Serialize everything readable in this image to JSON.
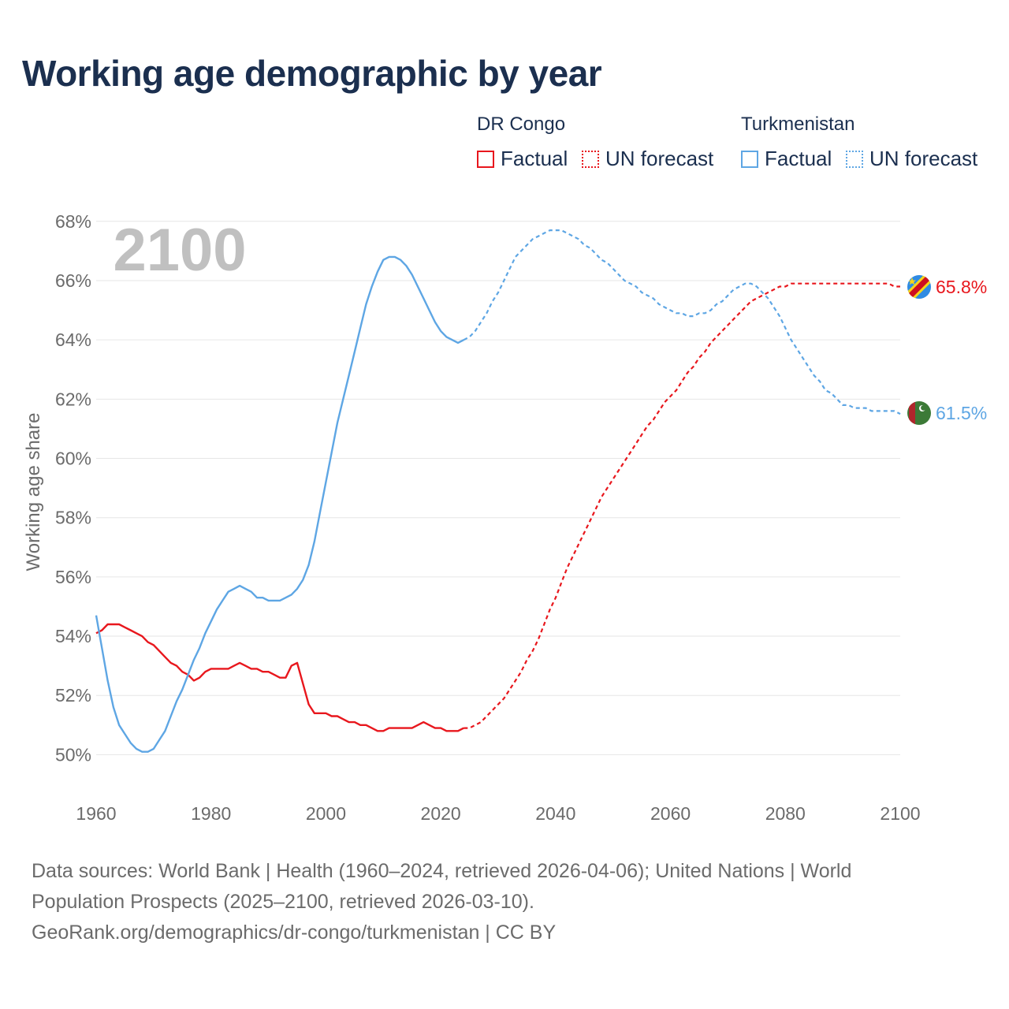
{
  "title": "Working age demographic by year",
  "legend": {
    "groups": [
      {
        "name": "DR Congo",
        "factual_label": "Factual",
        "forecast_label": "UN forecast",
        "color": "#e8171d"
      },
      {
        "name": "Turkmenistan",
        "factual_label": "Factual",
        "forecast_label": "UN forecast",
        "color": "#5ea6e4"
      }
    ]
  },
  "sources": {
    "line1": "Data sources: World Bank | Health (1960–2024, retrieved 2026-04-06); United Nations | World",
    "line2": "Population Prospects (2025–2100, retrieved 2026-03-10).",
    "line3": "GeoRank.org/demographics/dr-congo/turkmenistan | CC BY"
  },
  "chart_data": {
    "type": "line",
    "title": "Working age demographic by year",
    "xlabel": "",
    "ylabel": "Working age share",
    "year_watermark": "2100",
    "xlim": [
      1960,
      2100
    ],
    "ylim": [
      49,
      68.5
    ],
    "x_ticks": [
      1960,
      1980,
      2000,
      2020,
      2040,
      2060,
      2080,
      2100
    ],
    "y_ticks": [
      50,
      52,
      54,
      56,
      58,
      60,
      62,
      64,
      66,
      68
    ],
    "y_tick_labels": [
      "50%",
      "52%",
      "54%",
      "56%",
      "58%",
      "60%",
      "62%",
      "64%",
      "66%",
      "68%"
    ],
    "grid": true,
    "factual_end_year": 2024,
    "series": [
      {
        "name": "DR Congo",
        "color": "#e8171d",
        "end_label": "65.8%",
        "flag": "dr-congo",
        "points": [
          [
            1960,
            54.1
          ],
          [
            1961,
            54.2
          ],
          [
            1962,
            54.4
          ],
          [
            1963,
            54.4
          ],
          [
            1964,
            54.4
          ],
          [
            1965,
            54.3
          ],
          [
            1966,
            54.2
          ],
          [
            1967,
            54.1
          ],
          [
            1968,
            54.0
          ],
          [
            1969,
            53.8
          ],
          [
            1970,
            53.7
          ],
          [
            1971,
            53.5
          ],
          [
            1972,
            53.3
          ],
          [
            1973,
            53.1
          ],
          [
            1974,
            53.0
          ],
          [
            1975,
            52.8
          ],
          [
            1976,
            52.7
          ],
          [
            1977,
            52.5
          ],
          [
            1978,
            52.6
          ],
          [
            1979,
            52.8
          ],
          [
            1980,
            52.9
          ],
          [
            1981,
            52.9
          ],
          [
            1982,
            52.9
          ],
          [
            1983,
            52.9
          ],
          [
            1984,
            53.0
          ],
          [
            1985,
            53.1
          ],
          [
            1986,
            53.0
          ],
          [
            1987,
            52.9
          ],
          [
            1988,
            52.9
          ],
          [
            1989,
            52.8
          ],
          [
            1990,
            52.8
          ],
          [
            1991,
            52.7
          ],
          [
            1992,
            52.6
          ],
          [
            1993,
            52.6
          ],
          [
            1994,
            53.0
          ],
          [
            1995,
            53.1
          ],
          [
            1996,
            52.4
          ],
          [
            1997,
            51.7
          ],
          [
            1998,
            51.4
          ],
          [
            1999,
            51.4
          ],
          [
            2000,
            51.4
          ],
          [
            2001,
            51.3
          ],
          [
            2002,
            51.3
          ],
          [
            2003,
            51.2
          ],
          [
            2004,
            51.1
          ],
          [
            2005,
            51.1
          ],
          [
            2006,
            51.0
          ],
          [
            2007,
            51.0
          ],
          [
            2008,
            50.9
          ],
          [
            2009,
            50.8
          ],
          [
            2010,
            50.8
          ],
          [
            2011,
            50.9
          ],
          [
            2012,
            50.9
          ],
          [
            2013,
            50.9
          ],
          [
            2014,
            50.9
          ],
          [
            2015,
            50.9
          ],
          [
            2016,
            51.0
          ],
          [
            2017,
            51.1
          ],
          [
            2018,
            51.0
          ],
          [
            2019,
            50.9
          ],
          [
            2020,
            50.9
          ],
          [
            2021,
            50.8
          ],
          [
            2022,
            50.8
          ],
          [
            2023,
            50.8
          ],
          [
            2024,
            50.9
          ],
          [
            2025,
            50.9
          ],
          [
            2026,
            51.0
          ],
          [
            2027,
            51.1
          ],
          [
            2028,
            51.3
          ],
          [
            2029,
            51.5
          ],
          [
            2030,
            51.7
          ],
          [
            2031,
            51.9
          ],
          [
            2032,
            52.2
          ],
          [
            2033,
            52.5
          ],
          [
            2034,
            52.8
          ],
          [
            2035,
            53.2
          ],
          [
            2036,
            53.5
          ],
          [
            2037,
            53.9
          ],
          [
            2038,
            54.4
          ],
          [
            2039,
            54.9
          ],
          [
            2040,
            55.3
          ],
          [
            2041,
            55.8
          ],
          [
            2042,
            56.3
          ],
          [
            2043,
            56.7
          ],
          [
            2044,
            57.1
          ],
          [
            2045,
            57.5
          ],
          [
            2046,
            57.9
          ],
          [
            2047,
            58.3
          ],
          [
            2048,
            58.7
          ],
          [
            2049,
            59.0
          ],
          [
            2050,
            59.3
          ],
          [
            2051,
            59.6
          ],
          [
            2052,
            59.9
          ],
          [
            2053,
            60.2
          ],
          [
            2054,
            60.5
          ],
          [
            2055,
            60.8
          ],
          [
            2056,
            61.1
          ],
          [
            2057,
            61.3
          ],
          [
            2058,
            61.6
          ],
          [
            2059,
            61.9
          ],
          [
            2060,
            62.1
          ],
          [
            2061,
            62.3
          ],
          [
            2062,
            62.6
          ],
          [
            2063,
            62.9
          ],
          [
            2064,
            63.1
          ],
          [
            2065,
            63.4
          ],
          [
            2066,
            63.6
          ],
          [
            2067,
            63.9
          ],
          [
            2068,
            64.1
          ],
          [
            2069,
            64.3
          ],
          [
            2070,
            64.5
          ],
          [
            2071,
            64.7
          ],
          [
            2072,
            64.9
          ],
          [
            2073,
            65.1
          ],
          [
            2074,
            65.3
          ],
          [
            2075,
            65.4
          ],
          [
            2076,
            65.5
          ],
          [
            2077,
            65.6
          ],
          [
            2078,
            65.7
          ],
          [
            2079,
            65.8
          ],
          [
            2080,
            65.8
          ],
          [
            2081,
            65.9
          ],
          [
            2082,
            65.9
          ],
          [
            2083,
            65.9
          ],
          [
            2084,
            65.9
          ],
          [
            2085,
            65.9
          ],
          [
            2086,
            65.9
          ],
          [
            2087,
            65.9
          ],
          [
            2088,
            65.9
          ],
          [
            2089,
            65.9
          ],
          [
            2090,
            65.9
          ],
          [
            2091,
            65.9
          ],
          [
            2092,
            65.9
          ],
          [
            2093,
            65.9
          ],
          [
            2094,
            65.9
          ],
          [
            2095,
            65.9
          ],
          [
            2096,
            65.9
          ],
          [
            2097,
            65.9
          ],
          [
            2098,
            65.9
          ],
          [
            2099,
            65.8
          ],
          [
            2100,
            65.8
          ]
        ]
      },
      {
        "name": "Turkmenistan",
        "color": "#5ea6e4",
        "end_label": "61.5%",
        "flag": "turkmenistan",
        "points": [
          [
            1960,
            54.7
          ],
          [
            1961,
            53.6
          ],
          [
            1962,
            52.5
          ],
          [
            1963,
            51.6
          ],
          [
            1964,
            51.0
          ],
          [
            1965,
            50.7
          ],
          [
            1966,
            50.4
          ],
          [
            1967,
            50.2
          ],
          [
            1968,
            50.1
          ],
          [
            1969,
            50.1
          ],
          [
            1970,
            50.2
          ],
          [
            1971,
            50.5
          ],
          [
            1972,
            50.8
          ],
          [
            1973,
            51.3
          ],
          [
            1974,
            51.8
          ],
          [
            1975,
            52.2
          ],
          [
            1976,
            52.7
          ],
          [
            1977,
            53.2
          ],
          [
            1978,
            53.6
          ],
          [
            1979,
            54.1
          ],
          [
            1980,
            54.5
          ],
          [
            1981,
            54.9
          ],
          [
            1982,
            55.2
          ],
          [
            1983,
            55.5
          ],
          [
            1984,
            55.6
          ],
          [
            1985,
            55.7
          ],
          [
            1986,
            55.6
          ],
          [
            1987,
            55.5
          ],
          [
            1988,
            55.3
          ],
          [
            1989,
            55.3
          ],
          [
            1990,
            55.2
          ],
          [
            1991,
            55.2
          ],
          [
            1992,
            55.2
          ],
          [
            1993,
            55.3
          ],
          [
            1994,
            55.4
          ],
          [
            1995,
            55.6
          ],
          [
            1996,
            55.9
          ],
          [
            1997,
            56.4
          ],
          [
            1998,
            57.2
          ],
          [
            1999,
            58.2
          ],
          [
            2000,
            59.2
          ],
          [
            2001,
            60.2
          ],
          [
            2002,
            61.2
          ],
          [
            2003,
            62.0
          ],
          [
            2004,
            62.8
          ],
          [
            2005,
            63.6
          ],
          [
            2006,
            64.4
          ],
          [
            2007,
            65.2
          ],
          [
            2008,
            65.8
          ],
          [
            2009,
            66.3
          ],
          [
            2010,
            66.7
          ],
          [
            2011,
            66.8
          ],
          [
            2012,
            66.8
          ],
          [
            2013,
            66.7
          ],
          [
            2014,
            66.5
          ],
          [
            2015,
            66.2
          ],
          [
            2016,
            65.8
          ],
          [
            2017,
            65.4
          ],
          [
            2018,
            65.0
          ],
          [
            2019,
            64.6
          ],
          [
            2020,
            64.3
          ],
          [
            2021,
            64.1
          ],
          [
            2022,
            64.0
          ],
          [
            2023,
            63.9
          ],
          [
            2024,
            64.0
          ],
          [
            2025,
            64.1
          ],
          [
            2026,
            64.3
          ],
          [
            2027,
            64.6
          ],
          [
            2028,
            64.9
          ],
          [
            2029,
            65.3
          ],
          [
            2030,
            65.6
          ],
          [
            2031,
            66.0
          ],
          [
            2032,
            66.4
          ],
          [
            2033,
            66.8
          ],
          [
            2034,
            67.0
          ],
          [
            2035,
            67.2
          ],
          [
            2036,
            67.4
          ],
          [
            2037,
            67.5
          ],
          [
            2038,
            67.6
          ],
          [
            2039,
            67.7
          ],
          [
            2040,
            67.7
          ],
          [
            2041,
            67.7
          ],
          [
            2042,
            67.6
          ],
          [
            2043,
            67.5
          ],
          [
            2044,
            67.4
          ],
          [
            2045,
            67.2
          ],
          [
            2046,
            67.1
          ],
          [
            2047,
            66.9
          ],
          [
            2048,
            66.7
          ],
          [
            2049,
            66.6
          ],
          [
            2050,
            66.4
          ],
          [
            2051,
            66.2
          ],
          [
            2052,
            66.0
          ],
          [
            2053,
            65.9
          ],
          [
            2054,
            65.8
          ],
          [
            2055,
            65.6
          ],
          [
            2056,
            65.5
          ],
          [
            2057,
            65.4
          ],
          [
            2058,
            65.2
          ],
          [
            2059,
            65.1
          ],
          [
            2060,
            65.0
          ],
          [
            2061,
            64.9
          ],
          [
            2062,
            64.9
          ],
          [
            2063,
            64.8
          ],
          [
            2064,
            64.8
          ],
          [
            2065,
            64.9
          ],
          [
            2066,
            64.9
          ],
          [
            2067,
            65.0
          ],
          [
            2068,
            65.2
          ],
          [
            2069,
            65.3
          ],
          [
            2070,
            65.5
          ],
          [
            2071,
            65.7
          ],
          [
            2072,
            65.8
          ],
          [
            2073,
            65.9
          ],
          [
            2074,
            65.9
          ],
          [
            2075,
            65.8
          ],
          [
            2076,
            65.6
          ],
          [
            2077,
            65.4
          ],
          [
            2078,
            65.1
          ],
          [
            2079,
            64.8
          ],
          [
            2080,
            64.4
          ],
          [
            2081,
            64.0
          ],
          [
            2082,
            63.7
          ],
          [
            2083,
            63.4
          ],
          [
            2084,
            63.1
          ],
          [
            2085,
            62.8
          ],
          [
            2086,
            62.6
          ],
          [
            2087,
            62.3
          ],
          [
            2088,
            62.2
          ],
          [
            2089,
            62.0
          ],
          [
            2090,
            61.8
          ],
          [
            2091,
            61.8
          ],
          [
            2092,
            61.7
          ],
          [
            2093,
            61.7
          ],
          [
            2094,
            61.7
          ],
          [
            2095,
            61.6
          ],
          [
            2096,
            61.6
          ],
          [
            2097,
            61.6
          ],
          [
            2098,
            61.6
          ],
          [
            2099,
            61.6
          ],
          [
            2100,
            61.5
          ]
        ]
      }
    ]
  }
}
